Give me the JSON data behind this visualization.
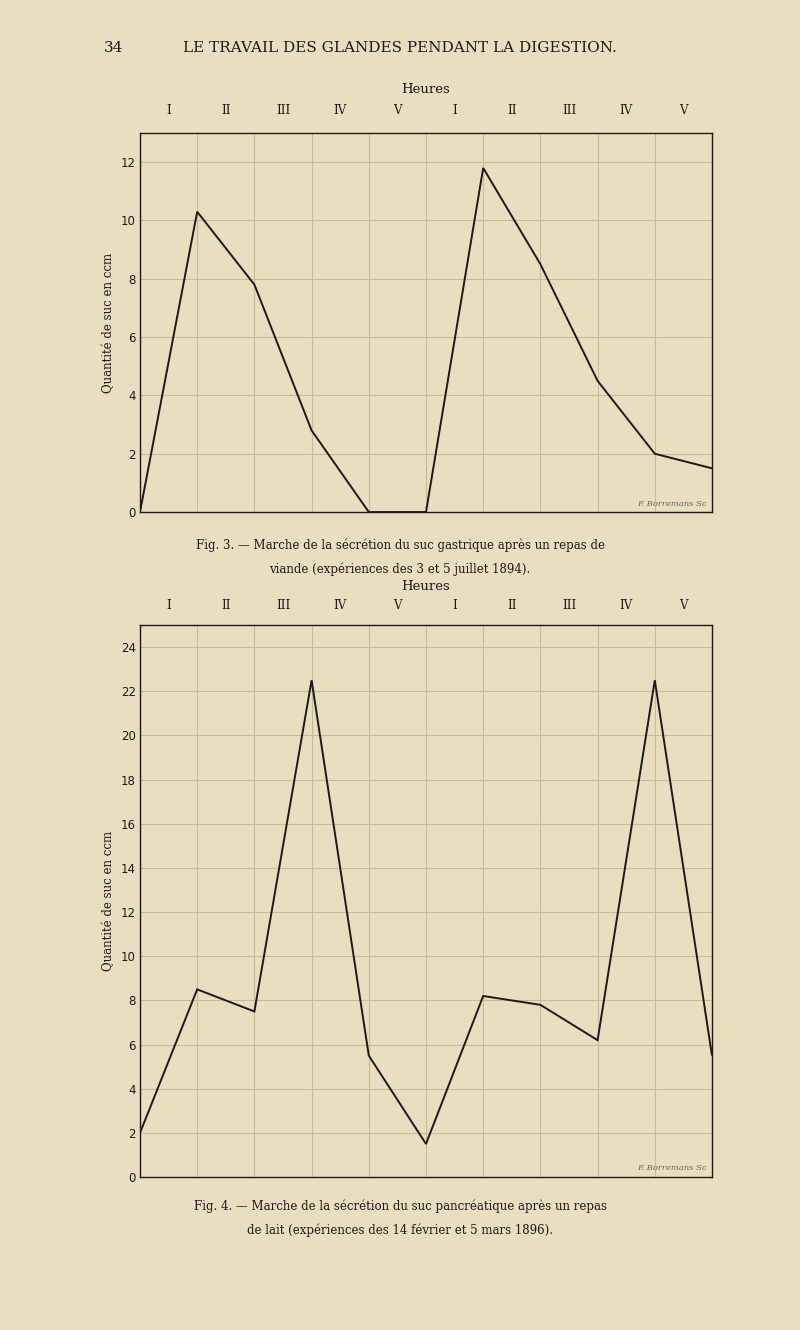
{
  "page_title_num": "34",
  "page_title_text": "LE TRAVAIL DES GLANDES PENDANT LA DIGESTION.",
  "bg_color": "#e8dfc0",
  "grid_color": "#c8bc98",
  "line_color": "#1a1a1a",
  "axis_color": "#1a1a1a",
  "text_color": "#1a1a1a",
  "fig1": {
    "heures_label": "Heures",
    "ylabel": "Quantité de suc en ccm",
    "xlabels": [
      "I",
      "II",
      "III",
      "IV",
      "V",
      "I",
      "II",
      "III",
      "IV",
      "V"
    ],
    "yticks": [
      0,
      2,
      4,
      6,
      8,
      10,
      12
    ],
    "ylim": [
      0,
      13
    ],
    "xlim": [
      0,
      10
    ],
    "x": [
      0,
      1,
      2,
      3,
      4,
      5,
      6,
      7,
      8,
      9,
      10
    ],
    "y": [
      0,
      10.3,
      7.8,
      2.8,
      0.0,
      0.0,
      11.8,
      8.5,
      4.5,
      2.0,
      1.5
    ],
    "caption1": "Fig. 3. — Marche de la sécrétion du suc gastrique après un repas de",
    "caption2": "viande (expériences des 3 et 5 juillet 1894).",
    "watermark": "F. Borremans Sc"
  },
  "fig2": {
    "heures_label": "Heures",
    "ylabel": "Quantité de suc en ccm",
    "xlabels": [
      "I",
      "II",
      "III",
      "IV",
      "V",
      "I",
      "II",
      "III",
      "IV",
      "V"
    ],
    "yticks": [
      0,
      2,
      4,
      6,
      8,
      10,
      12,
      14,
      16,
      18,
      20,
      22,
      24
    ],
    "ylim": [
      0,
      25
    ],
    "xlim": [
      0,
      10
    ],
    "x": [
      0,
      1,
      2,
      3,
      4,
      5,
      6,
      7,
      8,
      9,
      10
    ],
    "y": [
      2.0,
      8.5,
      7.5,
      22.5,
      5.5,
      1.5,
      8.2,
      7.8,
      6.2,
      22.5,
      5.5
    ],
    "caption1": "Fig. 4. — Marche de la sécrétion du suc pancréatique après un repas",
    "caption2": "de lait (expériences des 14 février et 5 mars 1896).",
    "watermark": "F. Borremans Sc"
  }
}
